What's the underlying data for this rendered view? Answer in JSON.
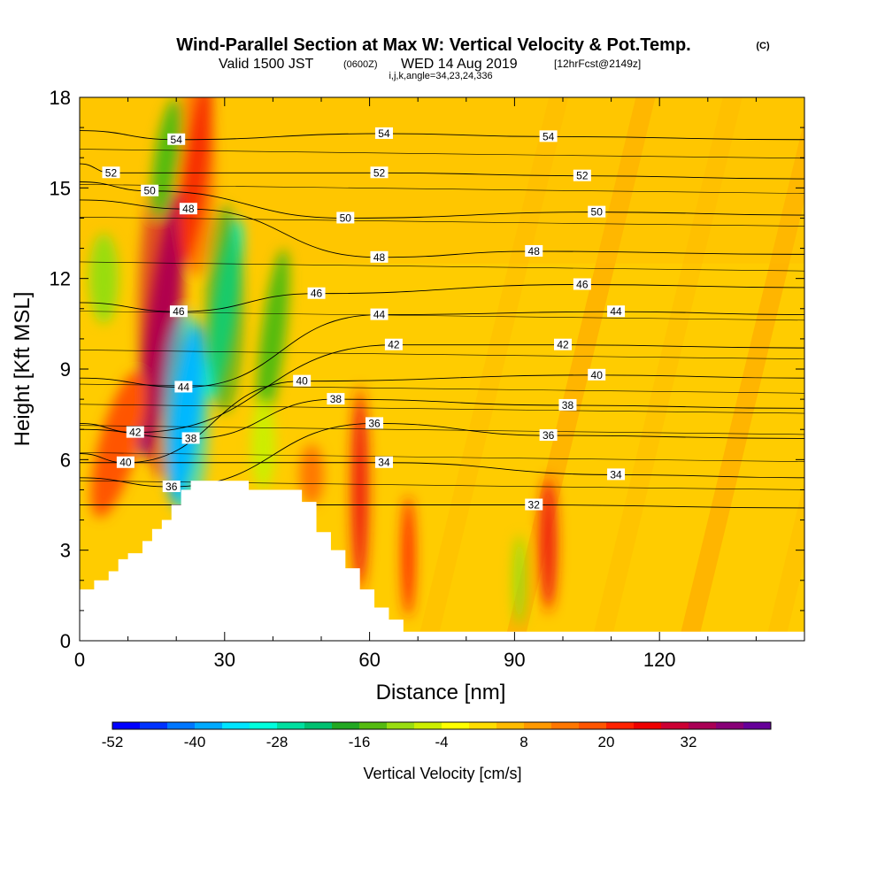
{
  "header": {
    "title": "Wind-Parallel Section at Max W: Vertical Velocity & Pot.Temp.",
    "copyright": "(C)",
    "subtitle_valid": "Valid 1500 JST",
    "subtitle_utc": "(0600Z)",
    "subtitle_date": "WED 14 Aug 2019",
    "subtitle_fcst": "[12hrFcst@2149z]",
    "indices": "i,j,k,angle=34,23,24,336"
  },
  "chart_data": {
    "type": "heatmap",
    "title": "Wind-Parallel Section at Max W: Vertical Velocity & Pot.Temp.",
    "xlabel": "Distance [nm]",
    "ylabel": "Height [Kft MSL]",
    "xlim": [
      0,
      150
    ],
    "ylim": [
      0,
      18
    ],
    "x_ticks": [
      0,
      30,
      60,
      90,
      120
    ],
    "y_ticks": [
      0,
      3,
      6,
      9,
      12,
      15,
      18
    ],
    "colorbar": {
      "label": "Vertical Velocity [cm/s]",
      "min": -52,
      "max": 40,
      "step": 4,
      "tick_labels": [
        "-52",
        "-40",
        "-28",
        "-16",
        "-4",
        "8",
        "20",
        "32"
      ],
      "tick_values": [
        -52,
        -40,
        -28,
        -16,
        -4,
        8,
        20,
        32
      ],
      "colors": [
        "#0000ff",
        "#0033ff",
        "#0077ff",
        "#00aaff",
        "#00e5ff",
        "#00ffdd",
        "#00e0a0",
        "#00c070",
        "#22a822",
        "#55bb11",
        "#99dd11",
        "#ccee00",
        "#ffff00",
        "#ffdd00",
        "#ffbb00",
        "#ff9900",
        "#ff7700",
        "#ff5500",
        "#ff2200",
        "#ee0000",
        "#cc0033",
        "#aa0055",
        "#880077",
        "#660099"
      ]
    },
    "isentrope_labels": [
      {
        "text": "54",
        "x": 20,
        "y": 16.6
      },
      {
        "text": "54",
        "x": 63,
        "y": 16.8
      },
      {
        "text": "54",
        "x": 97,
        "y": 16.7
      },
      {
        "text": "52",
        "x": 6.5,
        "y": 15.5
      },
      {
        "text": "52",
        "x": 62,
        "y": 15.5
      },
      {
        "text": "52",
        "x": 104,
        "y": 15.4
      },
      {
        "text": "50",
        "x": 14.5,
        "y": 14.9
      },
      {
        "text": "50",
        "x": 55,
        "y": 14.0
      },
      {
        "text": "50",
        "x": 107,
        "y": 14.2
      },
      {
        "text": "48",
        "x": 22.5,
        "y": 14.3
      },
      {
        "text": "48",
        "x": 62,
        "y": 12.7
      },
      {
        "text": "48",
        "x": 94,
        "y": 12.9
      },
      {
        "text": "46",
        "x": 20.5,
        "y": 10.9
      },
      {
        "text": "46",
        "x": 49,
        "y": 11.5
      },
      {
        "text": "46",
        "x": 104,
        "y": 11.8
      },
      {
        "text": "44",
        "x": 21.5,
        "y": 8.4
      },
      {
        "text": "44",
        "x": 62,
        "y": 10.8
      },
      {
        "text": "44",
        "x": 111,
        "y": 10.9
      },
      {
        "text": "42",
        "x": 11.5,
        "y": 6.9
      },
      {
        "text": "42",
        "x": 65,
        "y": 9.8
      },
      {
        "text": "42",
        "x": 100,
        "y": 9.8
      },
      {
        "text": "40",
        "x": 9.5,
        "y": 5.9
      },
      {
        "text": "40",
        "x": 46,
        "y": 8.6
      },
      {
        "text": "40",
        "x": 107,
        "y": 8.8
      },
      {
        "text": "38",
        "x": 23,
        "y": 6.7
      },
      {
        "text": "38",
        "x": 53,
        "y": 8.0
      },
      {
        "text": "38",
        "x": 101,
        "y": 7.8
      },
      {
        "text": "36",
        "x": 19,
        "y": 5.1
      },
      {
        "text": "36",
        "x": 61,
        "y": 7.2
      },
      {
        "text": "36",
        "x": 97,
        "y": 6.8
      },
      {
        "text": "34",
        "x": 63,
        "y": 5.9
      },
      {
        "text": "34",
        "x": 111,
        "y": 5.5
      },
      {
        "text": "32",
        "x": 94,
        "y": 4.5
      }
    ],
    "velocity_features": [
      {
        "value": 36,
        "x": 17,
        "y": 10.5,
        "width_nm": 6,
        "height_kft": 9,
        "tilt": 0.45
      },
      {
        "value": 24,
        "x": 24,
        "y": 15.5,
        "width_nm": 5,
        "height_kft": 6,
        "tilt": 0.5
      },
      {
        "value": -44,
        "x": 22,
        "y": 7.5,
        "width_nm": 6,
        "height_kft": 6,
        "tilt": 0.5
      },
      {
        "value": -30,
        "x": 30,
        "y": 11,
        "width_nm": 5,
        "height_kft": 6,
        "tilt": 0.4
      },
      {
        "value": -16,
        "x": 40,
        "y": 10,
        "width_nm": 5,
        "height_kft": 6,
        "tilt": 0.5
      },
      {
        "value": -12,
        "x": 5,
        "y": 12,
        "width_nm": 6,
        "height_kft": 3,
        "tilt": 0
      },
      {
        "value": -14,
        "x": 18,
        "y": 16,
        "width_nm": 5,
        "height_kft": 4,
        "tilt": 0.4
      },
      {
        "value": 28,
        "x": 58,
        "y": 5,
        "width_nm": 2.5,
        "height_kft": 6,
        "tilt": 0
      },
      {
        "value": 20,
        "x": 68,
        "y": 2.8,
        "width_nm": 2.5,
        "height_kft": 4,
        "tilt": 0
      },
      {
        "value": 28,
        "x": 97,
        "y": 3.2,
        "width_nm": 2.5,
        "height_kft": 4,
        "tilt": 0
      },
      {
        "value": -12,
        "x": 91,
        "y": 2.0,
        "width_nm": 2.5,
        "height_kft": 3,
        "tilt": 0
      },
      {
        "value": 16,
        "x": 8,
        "y": 6.5,
        "width_nm": 8,
        "height_kft": 5,
        "tilt": 0.2
      },
      {
        "value": 12,
        "x": 48,
        "y": 5.5,
        "width_nm": 5,
        "height_kft": 2,
        "tilt": 0
      },
      {
        "value": -8,
        "x": 38,
        "y": 6.5,
        "width_nm": 5,
        "height_kft": 3,
        "tilt": 0
      }
    ],
    "terrain_kft": [
      [
        0,
        1.7
      ],
      [
        3,
        1.7
      ],
      [
        3,
        2.0
      ],
      [
        6,
        2.0
      ],
      [
        6,
        2.3
      ],
      [
        8,
        2.3
      ],
      [
        8,
        2.7
      ],
      [
        10,
        2.7
      ],
      [
        10,
        2.9
      ],
      [
        13,
        2.9
      ],
      [
        13,
        3.3
      ],
      [
        15,
        3.3
      ],
      [
        15,
        3.7
      ],
      [
        17,
        3.7
      ],
      [
        17,
        4.0
      ],
      [
        19,
        4.0
      ],
      [
        19,
        4.5
      ],
      [
        21,
        4.5
      ],
      [
        21,
        5.0
      ],
      [
        23,
        5.0
      ],
      [
        23,
        5.3
      ],
      [
        35,
        5.3
      ],
      [
        35,
        5.0
      ],
      [
        46,
        5.0
      ],
      [
        46,
        4.6
      ],
      [
        49,
        4.6
      ],
      [
        49,
        3.6
      ],
      [
        52,
        3.6
      ],
      [
        52,
        3.0
      ],
      [
        55,
        3.0
      ],
      [
        55,
        2.4
      ],
      [
        58,
        2.4
      ],
      [
        58,
        1.7
      ],
      [
        61,
        1.7
      ],
      [
        61,
        1.1
      ],
      [
        64,
        1.1
      ],
      [
        64,
        0.7
      ],
      [
        67,
        0.7
      ],
      [
        67,
        0.3
      ],
      [
        150,
        0.3
      ]
    ]
  }
}
